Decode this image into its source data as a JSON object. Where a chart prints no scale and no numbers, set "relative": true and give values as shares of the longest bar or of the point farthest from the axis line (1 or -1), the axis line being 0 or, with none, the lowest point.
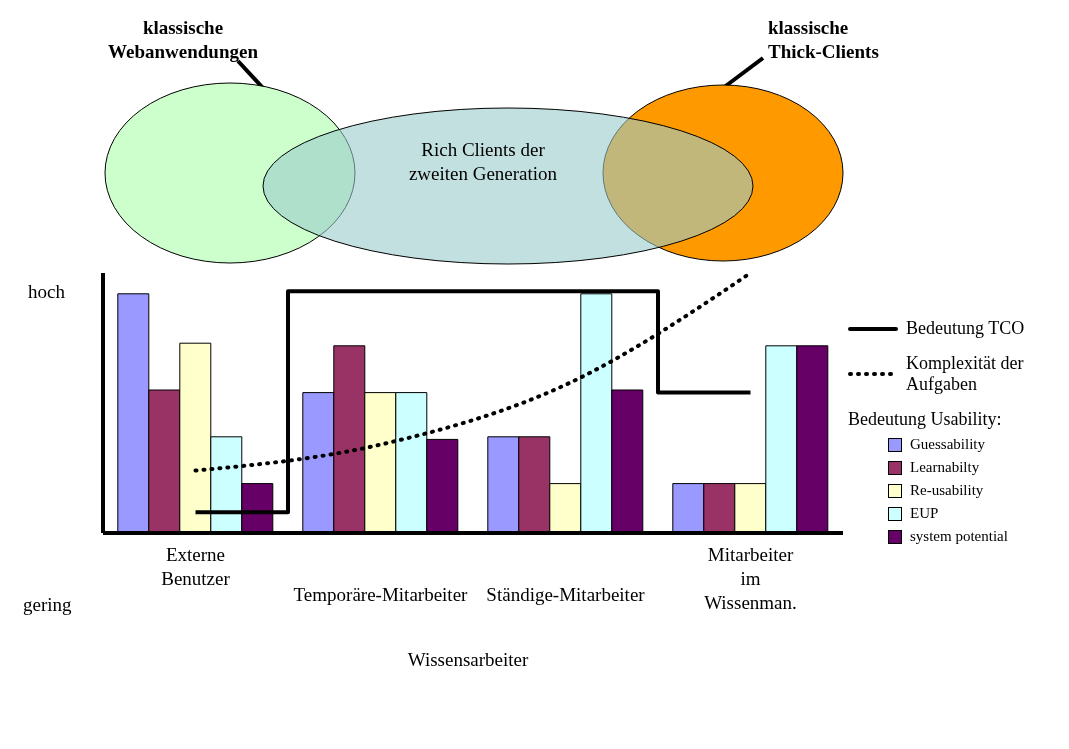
{
  "chart_data": {
    "type": "bar",
    "relative": true,
    "grid": false,
    "legend": "right",
    "legend_title": "Bedeutung Usability:",
    "categories": [
      "Externe Benutzer",
      "Temporäre-Mitarbeiter",
      "Ständige-Mitarbeiter",
      "Mitarbeiter im Wissenman."
    ],
    "series": [
      {
        "name": "Bedeutung TCO",
        "type": "step",
        "color": "#000000",
        "line_style": "solid",
        "values": [
          0.08,
          0.93,
          0.93,
          0.54
        ]
      },
      {
        "name": "Komplexität der Aufgaben",
        "type": "line",
        "color": "#000000",
        "line_style": "dotted",
        "values": [
          0.24,
          0.34,
          0.57,
          1
        ]
      },
      {
        "name": "Guessability",
        "color": "#9999ff",
        "values": [
          0.92,
          0.54,
          0.37,
          0.19
        ]
      },
      {
        "name": "Learnabilty",
        "color": "#993366",
        "values": [
          0.55,
          0.72,
          0.37,
          0.19
        ]
      },
      {
        "name": "Re-usability",
        "color": "#ffffcc",
        "values": [
          0.73,
          0.54,
          0.19,
          0.19
        ]
      },
      {
        "name": "EUP",
        "color": "#ccffff",
        "values": [
          0.37,
          0.54,
          0.92,
          0.72
        ]
      },
      {
        "name": "system potential",
        "color": "#660066",
        "values": [
          0.19,
          0.36,
          0.55,
          0.72
        ]
      }
    ],
    "marker": "none",
    "annotations": [
      "klassische Webanwendungen",
      "Rich Clients der zweiten Generation",
      "klassische Thick-Clients",
      "Wissensarbeiter",
      "hoch",
      "gering"
    ]
  }
}
